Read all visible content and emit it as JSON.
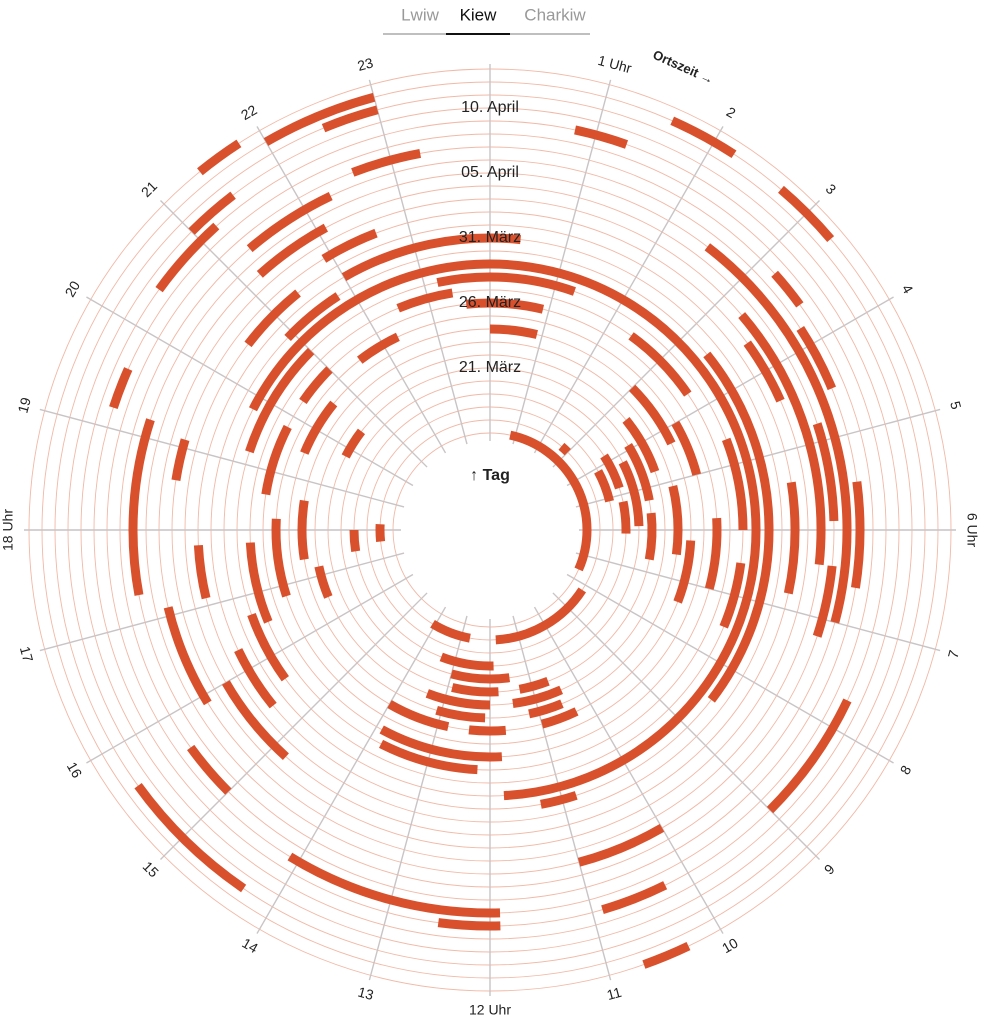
{
  "tabs": [
    {
      "label": "Lwiw",
      "active": false
    },
    {
      "label": "Kiew",
      "active": true
    },
    {
      "label": "Charkiw",
      "active": false
    }
  ],
  "chart_data": {
    "type": "radial-timeline",
    "angle_axis_label": "Ortszeit →",
    "radial_axis_label": "↑ Tag",
    "color": "#d9512c",
    "xlim": [
      0,
      24
    ],
    "xticks": [
      {
        "value": 0,
        "label": null
      },
      {
        "value": 1,
        "label": "1 Uhr"
      },
      2,
      3,
      4,
      5,
      {
        "value": 6,
        "label": "6 Uhr"
      },
      7,
      8,
      9,
      10,
      11,
      {
        "value": 12,
        "label": "12 Uhr"
      },
      13,
      14,
      15,
      16,
      17,
      {
        "value": 18,
        "label": "18 Uhr"
      },
      19,
      20,
      21,
      22,
      23
    ],
    "categories": [
      null,
      null,
      null,
      null,
      null,
      "21. März",
      null,
      null,
      null,
      null,
      "26. März",
      null,
      null,
      null,
      null,
      "31. März",
      null,
      null,
      null,
      null,
      "05. April",
      null,
      null,
      null,
      null,
      "10. April",
      null,
      null,
      null
    ],
    "alerts": [
      {
        "day": 0,
        "start": 0.8,
        "end": 7.6
      },
      {
        "day": 1,
        "start": 8.2,
        "end": 11.8
      },
      {
        "day": 1,
        "start": 12.7,
        "end": 14.1
      },
      {
        "day": 1,
        "start": 17.6,
        "end": 18.2
      },
      {
        "day": 1,
        "start": 2.7,
        "end": 3.0
      },
      {
        "day": 2,
        "start": 4.1,
        "end": 5.1
      },
      {
        "day": 3,
        "start": 11.9,
        "end": 13.4
      },
      {
        "day": 3,
        "start": 3.8,
        "end": 4.8
      },
      {
        "day": 3,
        "start": 5.2,
        "end": 6.1
      },
      {
        "day": 3,
        "start": 17.4,
        "end": 18.0
      },
      {
        "day": 4,
        "start": 11.5,
        "end": 13.0
      },
      {
        "day": 4,
        "start": 4.2,
        "end": 5.9
      },
      {
        "day": 5,
        "start": 11.8,
        "end": 12.9
      },
      {
        "day": 5,
        "start": 10.6,
        "end": 11.3
      },
      {
        "day": 5,
        "start": 3.9,
        "end": 5.3
      },
      {
        "day": 5,
        "start": 5.6,
        "end": 6.7
      },
      {
        "day": 5,
        "start": 19.8,
        "end": 20.5
      },
      {
        "day": 6,
        "start": 12.0,
        "end": 13.4
      },
      {
        "day": 6,
        "start": 10.4,
        "end": 11.5
      },
      {
        "day": 6,
        "start": 3.4,
        "end": 4.7
      },
      {
        "day": 6,
        "start": 16.5,
        "end": 17.2
      },
      {
        "day": 7,
        "start": 12.1,
        "end": 13.1
      },
      {
        "day": 7,
        "start": 10.5,
        "end": 11.2
      },
      {
        "day": 7,
        "start": 5.1,
        "end": 6.5
      },
      {
        "day": 7,
        "start": 17.4,
        "end": 18.6
      },
      {
        "day": 8,
        "start": 10.3,
        "end": 11.0
      },
      {
        "day": 8,
        "start": 11.7,
        "end": 12.4
      },
      {
        "day": 8,
        "start": 12.8,
        "end": 14.0
      },
      {
        "day": 8,
        "start": 3.0,
        "end": 4.3
      },
      {
        "day": 8,
        "start": 6.2,
        "end": 7.4
      },
      {
        "day": 8,
        "start": 19.5,
        "end": 20.6
      },
      {
        "day": 8,
        "start": 0.0,
        "end": 0.9
      },
      {
        "day": 9,
        "start": 4.0,
        "end": 5.0
      },
      {
        "day": 9,
        "start": 16.8,
        "end": 18.2
      },
      {
        "day": 9,
        "start": 21.5,
        "end": 22.3
      },
      {
        "day": 10,
        "start": 11.8,
        "end": 13.9
      },
      {
        "day": 10,
        "start": 5.8,
        "end": 7.0
      },
      {
        "day": 10,
        "start": 18.6,
        "end": 19.8
      },
      {
        "day": 10,
        "start": 20.3,
        "end": 21.0
      },
      {
        "day": 10,
        "start": 23.6,
        "end": 0.9
      },
      {
        "day": 11,
        "start": 12.2,
        "end": 13.8
      },
      {
        "day": 11,
        "start": 2.4,
        "end": 3.7
      },
      {
        "day": 11,
        "start": 16.5,
        "end": 17.8
      },
      {
        "day": 11,
        "start": 22.5,
        "end": 23.4
      },
      {
        "day": 12,
        "start": 23.2,
        "end": 1.3
      },
      {
        "day": 12,
        "start": 4.6,
        "end": 6.0
      },
      {
        "day": 12,
        "start": 6.5,
        "end": 7.5
      },
      {
        "day": 12,
        "start": 15.6,
        "end": 16.7
      },
      {
        "day": 12,
        "start": 19.2,
        "end": 21.0
      },
      {
        "day": 13,
        "start": 19.8,
        "end": 11.8
      },
      {
        "day": 14,
        "start": 3.4,
        "end": 8.5
      },
      {
        "day": 14,
        "start": 10.8,
        "end": 11.3
      },
      {
        "day": 14,
        "start": 20.9,
        "end": 21.8
      },
      {
        "day": 14,
        "start": 15.4,
        "end": 16.3
      },
      {
        "day": 15,
        "start": 22.0,
        "end": 0.4
      },
      {
        "day": 15,
        "start": 17.1,
        "end": 17.8
      },
      {
        "day": 16,
        "start": 5.4,
        "end": 6.8
      },
      {
        "day": 16,
        "start": 14.8,
        "end": 16.0
      },
      {
        "day": 16,
        "start": 20.5,
        "end": 21.4
      },
      {
        "day": 17,
        "start": 3.6,
        "end": 4.4
      },
      {
        "day": 17,
        "start": 18.6,
        "end": 19.1
      },
      {
        "day": 17,
        "start": 21.9,
        "end": 22.6
      },
      {
        "day": 18,
        "start": 15.9,
        "end": 17.1
      },
      {
        "day": 18,
        "start": 3.3,
        "end": 6.4
      },
      {
        "day": 19,
        "start": 10.0,
        "end": 11.0
      },
      {
        "day": 19,
        "start": 4.8,
        "end": 5.9
      },
      {
        "day": 19,
        "start": 6.4,
        "end": 7.2
      },
      {
        "day": 19,
        "start": 21.2,
        "end": 22.1
      },
      {
        "day": 20,
        "start": 17.3,
        "end": 19.2
      },
      {
        "day": 20,
        "start": 2.5,
        "end": 7.0
      },
      {
        "day": 21,
        "start": 15.0,
        "end": 15.6
      },
      {
        "day": 21,
        "start": 21.3,
        "end": 22.3
      },
      {
        "day": 21,
        "start": 3.8,
        "end": 4.5
      },
      {
        "day": 21,
        "start": 5.5,
        "end": 6.6
      },
      {
        "day": 22,
        "start": 11.9,
        "end": 14.1
      },
      {
        "day": 22,
        "start": 22.6,
        "end": 23.3
      },
      {
        "day": 22,
        "start": 3.2,
        "end": 3.6
      },
      {
        "day": 23,
        "start": 19.2,
        "end": 19.6
      },
      {
        "day": 23,
        "start": 7.7,
        "end": 9.0
      },
      {
        "day": 23,
        "start": 10.25,
        "end": 10.9
      },
      {
        "day": 23,
        "start": 11.9,
        "end": 12.5
      },
      {
        "day": 24,
        "start": 20.4,
        "end": 21.2
      },
      {
        "day": 24,
        "start": 0.8,
        "end": 1.3
      },
      {
        "day": 25,
        "start": 21.0,
        "end": 21.5
      },
      {
        "day": 26,
        "start": 14.3,
        "end": 15.6
      },
      {
        "day": 26,
        "start": 22.5,
        "end": 23.0
      },
      {
        "day": 27,
        "start": 22.0,
        "end": 23.0
      },
      {
        "day": 27,
        "start": 1.6,
        "end": 2.2
      },
      {
        "day": 27,
        "start": 2.7,
        "end": 3.3
      },
      {
        "day": 28,
        "start": 21.4,
        "end": 21.8
      },
      {
        "day": 28,
        "start": 10.3,
        "end": 10.7
      }
    ]
  }
}
